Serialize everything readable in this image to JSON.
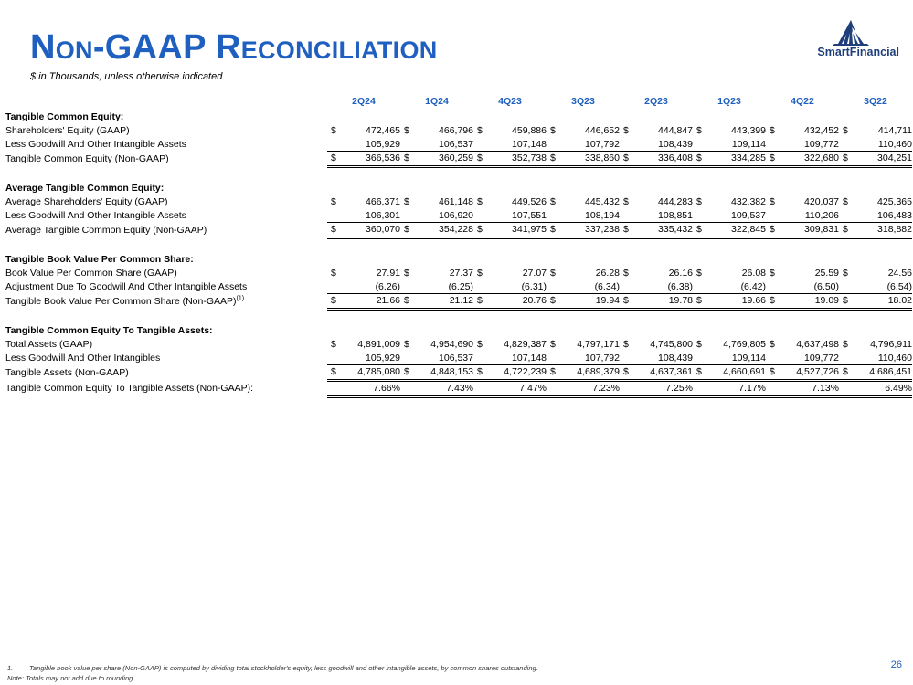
{
  "header": {
    "title": "Non-GAAP Reconciliation",
    "subtitle": "$ in Thousands, unless otherwise indicated",
    "logo_text": "SmartFinancial"
  },
  "columns": [
    "2Q24",
    "1Q24",
    "4Q23",
    "3Q23",
    "2Q23",
    "1Q23",
    "4Q22",
    "3Q22"
  ],
  "sections": [
    {
      "title": "Tangible Common Equity:",
      "rows": [
        {
          "label": "Shareholders' Equity (GAAP)",
          "dollar": true,
          "total": false,
          "values": [
            "472,465",
            "466,796",
            "459,886",
            "446,652",
            "444,847",
            "443,399",
            "432,452",
            "414,711"
          ]
        },
        {
          "label": "Less Goodwill And Other Intangible Assets",
          "dollar": false,
          "total": false,
          "values": [
            "105,929",
            "106,537",
            "107,148",
            "107,792",
            "108,439",
            "109,114",
            "109,772",
            "110,460"
          ]
        },
        {
          "label": "Tangible Common Equity (Non-GAAP)",
          "dollar": true,
          "total": true,
          "values": [
            "366,536",
            "360,259",
            "352,738",
            "338,860",
            "336,408",
            "334,285",
            "322,680",
            "304,251"
          ]
        }
      ]
    },
    {
      "title": "Average Tangible Common Equity:",
      "rows": [
        {
          "label": "Average Shareholders' Equity (GAAP)",
          "dollar": true,
          "total": false,
          "values": [
            "466,371",
            "461,148",
            "449,526",
            "445,432",
            "444,283",
            "432,382",
            "420,037",
            "425,365"
          ]
        },
        {
          "label": "Less Goodwill And Other Intangible Assets",
          "dollar": false,
          "total": false,
          "values": [
            "106,301",
            "106,920",
            "107,551",
            "108,194",
            "108,851",
            "109,537",
            "110,206",
            "106,483"
          ]
        },
        {
          "label": "Average Tangible Common Equity (Non-GAAP)",
          "dollar": true,
          "total": true,
          "values": [
            "360,070",
            "354,228",
            "341,975",
            "337,238",
            "335,432",
            "322,845",
            "309,831",
            "318,882"
          ]
        }
      ]
    },
    {
      "title": "Tangible Book Value Per Common Share:",
      "rows": [
        {
          "label": "Book Value Per Common Share (GAAP)",
          "dollar": true,
          "total": false,
          "values": [
            "27.91",
            "27.37",
            "27.07",
            "26.28",
            "26.16",
            "26.08",
            "25.59",
            "24.56"
          ]
        },
        {
          "label": "Adjustment Due To Goodwill And Other Intangible Assets",
          "dollar": false,
          "total": false,
          "values": [
            "(6.26)",
            "(6.25)",
            "(6.31)",
            "(6.34)",
            "(6.38)",
            "(6.42)",
            "(6.50)",
            "(6.54)"
          ]
        },
        {
          "label": "Tangible Book Value Per Common Share (Non-GAAP)",
          "sup": "(1)",
          "dollar": true,
          "total": true,
          "values": [
            "21.66",
            "21.12",
            "20.76",
            "19.94",
            "19.78",
            "19.66",
            "19.09",
            "18.02"
          ]
        }
      ]
    },
    {
      "title": "Tangible Common Equity To Tangible Assets:",
      "rows": [
        {
          "label": "Total Assets (GAAP)",
          "dollar": true,
          "total": false,
          "values": [
            "4,891,009",
            "4,954,690",
            "4,829,387",
            "4,797,171",
            "4,745,800",
            "4,769,805",
            "4,637,498",
            "4,796,911"
          ]
        },
        {
          "label": "Less Goodwill And Other Intangibles",
          "dollar": false,
          "total": false,
          "values": [
            "105,929",
            "106,537",
            "107,148",
            "107,792",
            "108,439",
            "109,114",
            "109,772",
            "110,460"
          ]
        },
        {
          "label": "Tangible Assets (Non-GAAP)",
          "dollar": true,
          "total": true,
          "values": [
            "4,785,080",
            "4,848,153",
            "4,722,239",
            "4,689,379",
            "4,637,361",
            "4,660,691",
            "4,527,726",
            "4,686,451"
          ]
        },
        {
          "label": "Tangible Common Equity To Tangible Assets (Non-GAAP):",
          "dollar": false,
          "total": true,
          "values": [
            "7.66%",
            "7.43%",
            "7.47%",
            "7.23%",
            "7.25%",
            "7.17%",
            "7.13%",
            "6.49%"
          ]
        }
      ]
    }
  ],
  "footnotes": {
    "note1_number": "1.",
    "note1_text": "Tangible book value per share (Non-GAAP) is computed by dividing total stockholder's equity, less goodwill and other intangible assets, by common shares outstanding.",
    "note2": "Note: Totals may not add due to rounding"
  },
  "page_number": "26",
  "colors": {
    "accent": "#1f5fbf",
    "logo": "#1f3f7a"
  }
}
